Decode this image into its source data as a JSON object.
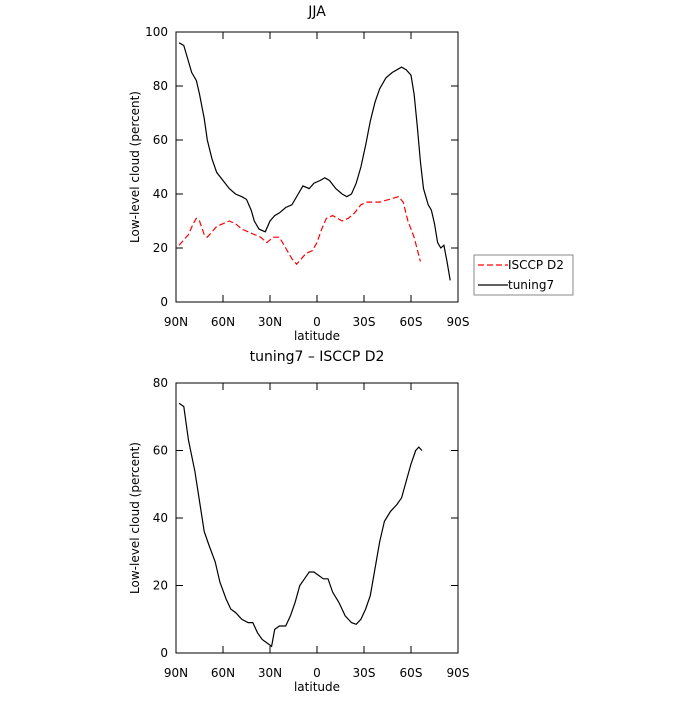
{
  "chart_data": [
    {
      "type": "line",
      "title": "JJA",
      "xlabel": "latitude",
      "ylabel": "Low-level cloud (percent)",
      "xlim": [
        90,
        -90
      ],
      "ylim": [
        0,
        100
      ],
      "xticks": [
        {
          "value": 90,
          "label": "90N"
        },
        {
          "value": 60,
          "label": "60N"
        },
        {
          "value": 30,
          "label": "30N"
        },
        0,
        {
          "value": -30,
          "label": "30S"
        },
        {
          "value": -60,
          "label": "60S"
        },
        {
          "value": -90,
          "label": "90S"
        }
      ],
      "yticks": [
        0,
        20,
        40,
        60,
        80,
        100
      ],
      "legend": "outside-right",
      "series": [
        {
          "name": "ISCCP D2",
          "color": "#ff0000",
          "style": "dashed",
          "x": [
            88,
            85,
            82,
            79,
            77,
            75,
            72,
            70,
            67,
            64,
            60,
            56,
            52,
            48,
            44,
            40,
            36,
            32,
            28,
            24,
            20,
            16,
            13,
            10,
            7,
            3,
            0,
            -3,
            -6,
            -10,
            -13,
            -16,
            -20,
            -24,
            -28,
            -32,
            -36,
            -40,
            -46,
            -52,
            -55,
            -58,
            -62,
            -66
          ],
          "values": [
            21,
            23,
            25,
            29,
            31,
            30,
            25,
            24,
            26,
            28,
            29,
            30,
            29,
            27,
            26,
            25,
            24,
            22,
            24,
            24,
            20,
            16,
            14,
            16,
            18,
            19,
            22,
            27,
            31,
            32,
            31,
            30,
            31,
            33,
            36,
            37,
            37,
            37,
            38,
            39,
            37,
            30,
            24,
            15
          ]
        },
        {
          "name": "tuning7",
          "color": "#000000",
          "style": "solid",
          "x": [
            88,
            85,
            80,
            77,
            75,
            72,
            70,
            67,
            64,
            60,
            56,
            52,
            48,
            45,
            42,
            40,
            37,
            33,
            30,
            27,
            24,
            20,
            16,
            12,
            9,
            5,
            2,
            -2,
            -5,
            -8,
            -12,
            -16,
            -19,
            -22,
            -25,
            -28,
            -31,
            -34,
            -37,
            -40,
            -44,
            -48,
            -51,
            -54,
            -57,
            -60,
            -62,
            -64,
            -66,
            -68,
            -71,
            -73,
            -75,
            -77,
            -79,
            -81,
            -83,
            -85
          ],
          "values": [
            96,
            95,
            85,
            82,
            77,
            68,
            60,
            53,
            48,
            45,
            42,
            40,
            39,
            38,
            34,
            30,
            27,
            26,
            30,
            32,
            33,
            35,
            36,
            40,
            43,
            42,
            44,
            45,
            46,
            45,
            42,
            40,
            39,
            40,
            44,
            50,
            58,
            67,
            74,
            79,
            83,
            85,
            86,
            87,
            86,
            84,
            77,
            65,
            52,
            42,
            36,
            34,
            29,
            22,
            20,
            21,
            15,
            8
          ]
        }
      ]
    },
    {
      "type": "line",
      "title": "tuning7 – ISCCP D2",
      "xlabel": "latitude",
      "ylabel": "Low-level cloud (percent)",
      "xlim": [
        90,
        -90
      ],
      "ylim": [
        0,
        80
      ],
      "xticks": [
        {
          "value": 90,
          "label": "90N"
        },
        {
          "value": 60,
          "label": "60N"
        },
        {
          "value": 30,
          "label": "30N"
        },
        0,
        {
          "value": -30,
          "label": "30S"
        },
        {
          "value": -60,
          "label": "60S"
        },
        {
          "value": -90,
          "label": "90S"
        }
      ],
      "yticks": [
        0,
        20,
        40,
        60,
        80
      ],
      "series": [
        {
          "color": "#000000",
          "style": "solid",
          "x": [
            88,
            85,
            82,
            78,
            75,
            72,
            69,
            65,
            62,
            58,
            55,
            52,
            48,
            44,
            41,
            38,
            35,
            32,
            29,
            27,
            24,
            20,
            17,
            14,
            11,
            8,
            5,
            2,
            -1,
            -4,
            -7,
            -10,
            -14,
            -18,
            -22,
            -25,
            -28,
            -31,
            -34,
            -37,
            -40,
            -43,
            -47,
            -51,
            -54,
            -57,
            -60,
            -63,
            -65,
            -67
          ],
          "values": [
            74,
            73,
            63,
            54,
            45,
            36,
            32,
            27,
            21,
            16,
            13,
            12,
            10,
            9,
            9,
            6,
            4,
            3,
            2,
            7,
            8,
            8,
            11,
            15,
            20,
            22,
            24,
            24,
            23,
            22,
            22,
            18,
            15,
            11,
            9,
            8.5,
            10,
            13,
            17,
            25,
            33,
            39,
            42,
            44,
            46,
            51,
            56,
            60,
            61,
            60
          ]
        }
      ]
    }
  ]
}
